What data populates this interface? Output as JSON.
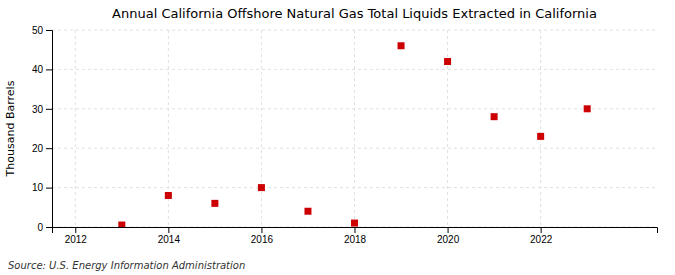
{
  "chart_data": {
    "type": "scatter",
    "title": "Annual California Offshore Natural Gas Total Liquids Extracted in California",
    "ylabel": "Thousand Barrels",
    "annotations": [
      "Source: U.S. Energy Information Administration"
    ],
    "x": [
      2013,
      2014,
      2015,
      2016,
      2017,
      2018,
      2019,
      2020,
      2021,
      2022,
      2023
    ],
    "values": [
      0.5,
      8,
      6,
      10,
      4,
      1,
      46,
      42,
      28,
      23,
      30
    ],
    "xlim": [
      2011.5,
      2024.5
    ],
    "ylim": [
      0,
      50
    ],
    "xticks": [
      2012,
      2014,
      2016,
      2018,
      2020,
      2022
    ],
    "yticks": [
      0,
      10,
      20,
      30,
      40,
      50
    ],
    "color": "#cc0000",
    "marker": "square",
    "grid": true
  }
}
